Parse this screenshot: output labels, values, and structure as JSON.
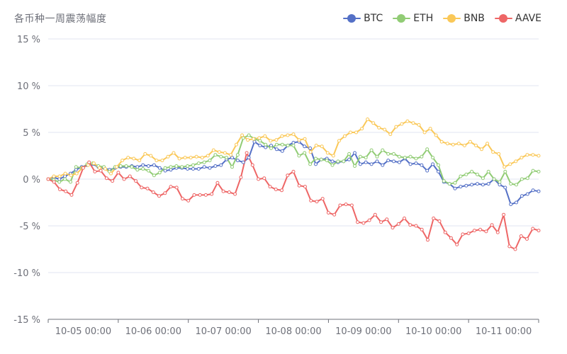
{
  "chart_data": {
    "type": "line",
    "title": "各币种一周震荡幅度",
    "ylim": [
      -15,
      15
    ],
    "yticks": [
      15,
      10,
      5,
      0,
      -5,
      -10,
      -15
    ],
    "ytick_suffix": " %",
    "x_tick_labels": [
      "10-05 00:00",
      "10-06 00:00",
      "10-07 00:00",
      "10-08 00:00",
      "10-09 00:00",
      "10-10 00:00",
      "10-11 00:00"
    ],
    "legend_position": "top-right",
    "grid": true,
    "series": [
      {
        "name": "BTC",
        "color": "#5470c6",
        "values": [
          0.0,
          0.2,
          0.0,
          0.3,
          0.6,
          1.0,
          1.3,
          1.5,
          1.6,
          1.3,
          1.2,
          1.0,
          1.2,
          1.3,
          1.3,
          1.4,
          1.3,
          1.5,
          1.4,
          1.5,
          1.2,
          0.9,
          1.0,
          1.2,
          1.2,
          1.1,
          1.1,
          1.1,
          1.3,
          1.2,
          1.4,
          1.5,
          2.1,
          2.3,
          2.0,
          1.8,
          2.3,
          4.0,
          3.6,
          3.4,
          3.6,
          3.2,
          3.0,
          3.6,
          3.9,
          4.0,
          3.5,
          3.3,
          1.6,
          2.1,
          2.2,
          1.9,
          1.8,
          1.9,
          2.1,
          2.8,
          1.6,
          1.8,
          1.6,
          1.9,
          1.5,
          2.0,
          1.9,
          1.8,
          2.2,
          1.6,
          1.7,
          1.5,
          0.9,
          1.6,
          0.8,
          -0.3,
          -0.5,
          -1.0,
          -0.8,
          -0.7,
          -0.6,
          -0.5,
          -0.6,
          -0.5,
          0.0,
          -0.6,
          -0.9,
          -2.7,
          -2.5,
          -1.8,
          -1.6,
          -1.2,
          -1.3
        ]
      },
      {
        "name": "ETH",
        "color": "#91cc75",
        "values": [
          0.0,
          -0.1,
          -0.3,
          0.0,
          -0.3,
          1.3,
          1.2,
          1.6,
          1.7,
          1.4,
          1.3,
          0.8,
          1.3,
          1.4,
          1.4,
          1.3,
          1.0,
          1.1,
          0.9,
          0.4,
          0.7,
          1.2,
          1.3,
          1.4,
          1.3,
          1.4,
          1.5,
          1.7,
          1.8,
          2.0,
          2.6,
          2.4,
          2.3,
          1.3,
          2.6,
          4.4,
          4.7,
          4.3,
          4.1,
          3.7,
          3.3,
          3.7,
          3.7,
          3.6,
          3.6,
          2.5,
          2.8,
          1.6,
          2.2,
          2.1,
          2.0,
          1.5,
          1.9,
          1.9,
          2.7,
          1.4,
          2.4,
          2.3,
          3.1,
          2.4,
          3.1,
          2.7,
          2.7,
          2.4,
          2.3,
          2.4,
          2.2,
          2.4,
          3.2,
          2.3,
          1.5,
          -0.2,
          -0.5,
          -0.4,
          0.3,
          0.5,
          0.8,
          0.5,
          0.1,
          0.8,
          0.0,
          -0.3,
          0.8,
          -0.5,
          -0.6,
          0.0,
          0.1,
          0.9,
          0.8
        ]
      },
      {
        "name": "BNB",
        "color": "#fac858",
        "values": [
          0.0,
          0.3,
          0.3,
          0.6,
          0.4,
          0.6,
          1.2,
          1.5,
          1.7,
          1.2,
          1.1,
          0.6,
          1.3,
          2.0,
          2.3,
          2.2,
          2.0,
          2.7,
          2.5,
          2.0,
          2.0,
          2.4,
          2.8,
          2.2,
          2.3,
          2.3,
          2.4,
          2.3,
          2.5,
          3.1,
          2.9,
          2.8,
          2.6,
          3.7,
          4.7,
          4.2,
          4.3,
          4.4,
          4.6,
          4.1,
          4.2,
          4.6,
          4.7,
          4.8,
          4.2,
          4.3,
          2.9,
          3.6,
          3.5,
          2.8,
          2.5,
          4.1,
          4.6,
          5.0,
          5.0,
          5.4,
          6.4,
          6.0,
          5.5,
          5.3,
          4.8,
          5.6,
          5.9,
          6.2,
          6.0,
          5.8,
          5.0,
          5.4,
          4.7,
          4.0,
          3.8,
          3.7,
          3.8,
          3.6,
          4.0,
          3.6,
          3.2,
          3.8,
          2.9,
          2.7,
          1.3,
          1.6,
          1.9,
          2.3,
          2.6,
          2.6,
          2.5
        ]
      },
      {
        "name": "AAVE",
        "color": "#ee6666",
        "values": [
          0.0,
          -0.3,
          -1.1,
          -1.3,
          -1.7,
          -0.4,
          1.2,
          1.8,
          0.8,
          0.9,
          0.1,
          -0.2,
          0.7,
          0.0,
          0.3,
          -0.2,
          -0.9,
          -1.0,
          -1.4,
          -1.8,
          -1.5,
          -0.8,
          -0.9,
          -2.1,
          -2.3,
          -1.7,
          -1.7,
          -1.7,
          -1.6,
          -0.4,
          -1.3,
          -1.4,
          -1.6,
          0.2,
          2.8,
          1.5,
          0.0,
          0.1,
          -0.8,
          -1.1,
          -1.2,
          0.4,
          0.8,
          -0.7,
          -0.8,
          -2.3,
          -2.4,
          -2.1,
          -3.6,
          -3.8,
          -2.8,
          -2.7,
          -2.8,
          -4.6,
          -4.7,
          -4.4,
          -3.8,
          -4.6,
          -4.3,
          -5.2,
          -4.8,
          -4.2,
          -4.9,
          -5.0,
          -5.4,
          -6.5,
          -4.2,
          -4.5,
          -5.7,
          -6.3,
          -7.0,
          -5.9,
          -5.8,
          -5.5,
          -5.4,
          -5.6,
          -4.9,
          -5.7,
          -3.8,
          -7.2,
          -7.5,
          -6.1,
          -6.4,
          -5.3,
          -5.5
        ]
      }
    ]
  }
}
